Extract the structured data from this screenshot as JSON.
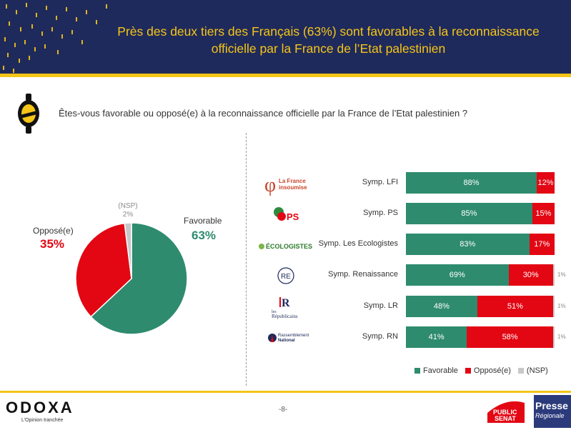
{
  "header": {
    "title_line1": "Près des deux tiers des Français (63%) sont favorables à la reconnaissance",
    "title_line2": "officielle par la France de l’Etat palestinien",
    "bg_color": "#1f2a5c",
    "accent_color": "#f5c518"
  },
  "question": "Êtes-vous favorable ou opposé(e) à la reconnaissance officielle par la France de l’Etat palestinien ?",
  "pie": {
    "favorable_label": "Favorable",
    "favorable_value": "63%",
    "oppose_label": "Opposé(e)",
    "oppose_value": "35%",
    "nsp_label": "(NSP)",
    "nsp_value": "2%"
  },
  "logos": {
    "lfi": "La France insoumise",
    "ps": "PS",
    "ecolo": "ÉCOLOGISTES",
    "re": "RE",
    "lr_line1": "les",
    "lr_line2": "Républicains",
    "rn_line1": "Rassemblement",
    "rn_line2": "National"
  },
  "legend": {
    "favorable": "Favorable",
    "oppose": "Opposé(e)",
    "nsp": "(NSP)"
  },
  "chart_data": [
    {
      "type": "pie",
      "categories": [
        "Favorable",
        "Opposé(e)",
        "(NSP)"
      ],
      "values": [
        63,
        35,
        2
      ],
      "colors": [
        "#2e8b6e",
        "#e30613",
        "#c8c8c8"
      ]
    },
    {
      "type": "bar",
      "orientation": "horizontal",
      "stacked": true,
      "categories": [
        "Symp. LFI",
        "Symp. PS",
        "Symp. Les Ecologistes",
        "Symp. Renaissance",
        "Symp. LR",
        "Symp. RN"
      ],
      "series": [
        {
          "name": "Favorable",
          "color": "#2e8b6e",
          "values": [
            88,
            85,
            83,
            69,
            48,
            41
          ],
          "labels": [
            "88%",
            "85%",
            "83%",
            "69%",
            "48%",
            "41%"
          ]
        },
        {
          "name": "Opposé(e)",
          "color": "#e30613",
          "values": [
            12,
            15,
            17,
            30,
            51,
            58
          ],
          "labels": [
            "12%",
            "15%",
            "17%",
            "30%",
            "51%",
            "58%"
          ]
        },
        {
          "name": "(NSP)",
          "color": "#c8c8c8",
          "values": [
            0,
            0,
            0,
            1,
            1,
            1
          ],
          "labels": [
            "",
            "",
            "",
            "1%",
            "1%",
            "1%"
          ]
        }
      ],
      "xlim": [
        0,
        100
      ]
    }
  ],
  "footer": {
    "brand": "ODOXA",
    "tagline": "L’Opinion tranchée",
    "page": "-8-",
    "partner1_line1": "PUBLIC",
    "partner1_line2": "SENAT",
    "partner2_line1": "Presse",
    "partner2_line2": "Régionale"
  }
}
